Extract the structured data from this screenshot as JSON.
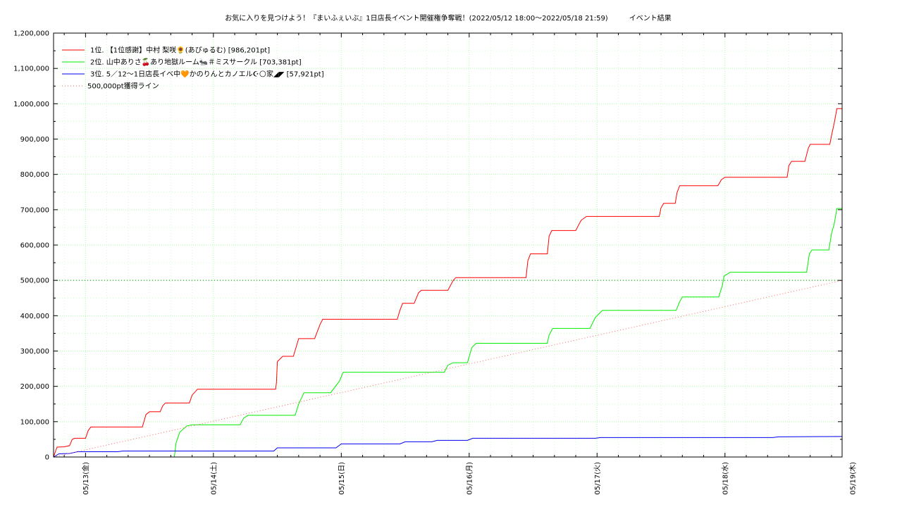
{
  "chart_data": {
    "type": "line",
    "title": "お気に入りを見つけよう！『まいふぇいぶ』1日店長イベント開催権争奪戦！(2022/05/12 18:00～2022/05/18 21:59)　　　イベント結果",
    "xlabel": "",
    "ylabel": "",
    "grid": true,
    "legend_position": "top-left",
    "xlim": [
      "2022-05-12 18:00",
      "2022-05-18 21:59"
    ],
    "ylim": [
      0,
      1200000
    ],
    "yticks": [
      0,
      100000,
      200000,
      300000,
      400000,
      500000,
      600000,
      700000,
      800000,
      900000,
      1000000,
      1100000,
      1200000
    ],
    "ytick_labels": [
      "0",
      "100,000",
      "200,000",
      "300,000",
      "400,000",
      "500,000",
      "600,000",
      "700,000",
      "800,000",
      "900,000",
      "1,000,000",
      "1,100,000",
      "1,200,000"
    ],
    "xticks": [
      "2022-05-13 00:00",
      "2022-05-14 00:00",
      "2022-05-15 00:00",
      "2022-05-16 00:00",
      "2022-05-17 00:00",
      "2022-05-18 00:00",
      "2022-05-19 00:00"
    ],
    "xtick_labels": [
      "05/13(金)",
      "05/14(土)",
      "05/15(日)",
      "05/16(月)",
      "05/17(火)",
      "05/18(水)",
      "05/19(木)"
    ],
    "series": [
      {
        "name": "1位. 【1位感謝】中村 梨咲🌻(あぴゅるむ) [986,201pt]",
        "color": "#ff0000",
        "style": "solid",
        "points": [
          [
            "2022-05-12 18:00",
            0
          ],
          [
            "2022-05-12 18:20",
            15000
          ],
          [
            "2022-05-12 18:40",
            28000
          ],
          [
            "2022-05-12 20:00",
            29000
          ],
          [
            "2022-05-12 21:00",
            32000
          ],
          [
            "2022-05-12 21:30",
            50000
          ],
          [
            "2022-05-12 22:00",
            53000
          ],
          [
            "2022-05-13 00:00",
            53000
          ],
          [
            "2022-05-13 00:30",
            75000
          ],
          [
            "2022-05-13 01:00",
            85000
          ],
          [
            "2022-05-13 10:40",
            85000
          ],
          [
            "2022-05-13 11:20",
            120000
          ],
          [
            "2022-05-13 12:00",
            128000
          ],
          [
            "2022-05-13 14:00",
            128000
          ],
          [
            "2022-05-13 14:30",
            145000
          ],
          [
            "2022-05-13 15:00",
            153000
          ],
          [
            "2022-05-13 19:30",
            153000
          ],
          [
            "2022-05-13 20:00",
            175000
          ],
          [
            "2022-05-13 21:00",
            192000
          ],
          [
            "2022-05-14 11:40",
            192000
          ],
          [
            "2022-05-14 11:50",
            210000
          ],
          [
            "2022-05-14 12:00",
            270000
          ],
          [
            "2022-05-14 13:00",
            285000
          ],
          [
            "2022-05-14 15:00",
            285000
          ],
          [
            "2022-05-14 15:30",
            310000
          ],
          [
            "2022-05-14 16:00",
            335000
          ],
          [
            "2022-05-14 19:00",
            335000
          ],
          [
            "2022-05-14 20:00",
            375000
          ],
          [
            "2022-05-14 20:30",
            390000
          ],
          [
            "2022-05-15 10:30",
            390000
          ],
          [
            "2022-05-15 11:00",
            415000
          ],
          [
            "2022-05-15 11:30",
            435000
          ],
          [
            "2022-05-15 13:40",
            435000
          ],
          [
            "2022-05-15 14:30",
            465000
          ],
          [
            "2022-05-15 15:00",
            472000
          ],
          [
            "2022-05-15 20:00",
            472000
          ],
          [
            "2022-05-15 21:00",
            500000
          ],
          [
            "2022-05-15 21:30",
            508000
          ],
          [
            "2022-05-16 10:40",
            508000
          ],
          [
            "2022-05-16 11:00",
            555000
          ],
          [
            "2022-05-16 11:30",
            575000
          ],
          [
            "2022-05-16 14:40",
            575000
          ],
          [
            "2022-05-16 15:00",
            625000
          ],
          [
            "2022-05-16 15:30",
            641000
          ],
          [
            "2022-05-16 20:00",
            641000
          ],
          [
            "2022-05-16 21:00",
            670000
          ],
          [
            "2022-05-16 22:00",
            681000
          ],
          [
            "2022-05-17 11:40",
            681000
          ],
          [
            "2022-05-17 12:00",
            705000
          ],
          [
            "2022-05-17 12:30",
            718000
          ],
          [
            "2022-05-17 14:40",
            718000
          ],
          [
            "2022-05-17 15:00",
            748000
          ],
          [
            "2022-05-17 15:30",
            768000
          ],
          [
            "2022-05-17 22:40",
            768000
          ],
          [
            "2022-05-17 23:20",
            785000
          ],
          [
            "2022-05-18 00:00",
            792000
          ],
          [
            "2022-05-18 11:40",
            792000
          ],
          [
            "2022-05-18 12:00",
            825000
          ],
          [
            "2022-05-18 12:30",
            837000
          ],
          [
            "2022-05-18 15:00",
            837000
          ],
          [
            "2022-05-18 15:40",
            875000
          ],
          [
            "2022-05-18 16:00",
            885000
          ],
          [
            "2022-05-18 19:40",
            885000
          ],
          [
            "2022-05-18 20:00",
            910000
          ],
          [
            "2022-05-18 20:30",
            945000
          ],
          [
            "2022-05-18 21:00",
            986201
          ],
          [
            "2022-05-18 21:59",
            986201
          ]
        ]
      },
      {
        "name": "2位. 山中ありさ🍒あり地獄ルーム🐜＃ミスサークル [703,381pt]",
        "color": "#00ee00",
        "style": "solid",
        "points": [
          [
            "2022-05-13 16:40",
            0
          ],
          [
            "2022-05-13 17:00",
            40000
          ],
          [
            "2022-05-13 17:40",
            70000
          ],
          [
            "2022-05-13 19:00",
            88000
          ],
          [
            "2022-05-13 20:00",
            91000
          ],
          [
            "2022-05-14 05:00",
            91000
          ],
          [
            "2022-05-14 05:40",
            110000
          ],
          [
            "2022-05-14 06:30",
            118000
          ],
          [
            "2022-05-14 15:20",
            118000
          ],
          [
            "2022-05-14 16:00",
            150000
          ],
          [
            "2022-05-14 17:00",
            182000
          ],
          [
            "2022-05-14 22:00",
            182000
          ],
          [
            "2022-05-14 23:40",
            215000
          ],
          [
            "2022-05-15 00:20",
            240000
          ],
          [
            "2022-05-15 19:20",
            240000
          ],
          [
            "2022-05-15 20:00",
            260000
          ],
          [
            "2022-05-15 21:00",
            267000
          ],
          [
            "2022-05-15 23:40",
            267000
          ],
          [
            "2022-05-16 00:30",
            310000
          ],
          [
            "2022-05-16 01:20",
            322000
          ],
          [
            "2022-05-16 14:40",
            322000
          ],
          [
            "2022-05-16 15:00",
            345000
          ],
          [
            "2022-05-16 15:40",
            364000
          ],
          [
            "2022-05-16 22:40",
            364000
          ],
          [
            "2022-05-16 23:40",
            395000
          ],
          [
            "2022-05-17 00:20",
            405000
          ],
          [
            "2022-05-17 01:00",
            415000
          ],
          [
            "2022-05-17 14:50",
            415000
          ],
          [
            "2022-05-17 15:30",
            440000
          ],
          [
            "2022-05-17 16:00",
            453000
          ],
          [
            "2022-05-17 22:50",
            453000
          ],
          [
            "2022-05-17 23:30",
            485000
          ],
          [
            "2022-05-17 23:50",
            512000
          ],
          [
            "2022-05-18 01:00",
            523000
          ],
          [
            "2022-05-18 15:20",
            523000
          ],
          [
            "2022-05-18 15:50",
            575000
          ],
          [
            "2022-05-18 16:20",
            586000
          ],
          [
            "2022-05-18 19:30",
            586000
          ],
          [
            "2022-05-18 20:00",
            633000
          ],
          [
            "2022-05-18 20:30",
            660000
          ],
          [
            "2022-05-18 21:00",
            703381
          ],
          [
            "2022-05-18 21:59",
            703381
          ]
        ]
      },
      {
        "name": "3位. 5／12〜1日店長イベ中🧡かのりんとカノエル☪︎🌕家◢◤ [57,921pt]",
        "color": "#0000ee",
        "style": "solid",
        "points": [
          [
            "2022-05-12 18:00",
            0
          ],
          [
            "2022-05-12 19:00",
            9000
          ],
          [
            "2022-05-12 21:00",
            10000
          ],
          [
            "2022-05-12 22:30",
            15000
          ],
          [
            "2022-05-13 06:00",
            15000
          ],
          [
            "2022-05-13 07:00",
            17000
          ],
          [
            "2022-05-14 11:20",
            17000
          ],
          [
            "2022-05-14 12:00",
            26000
          ],
          [
            "2022-05-14 23:00",
            26000
          ],
          [
            "2022-05-15 00:00",
            37000
          ],
          [
            "2022-05-15 11:00",
            37000
          ],
          [
            "2022-05-15 12:00",
            43000
          ],
          [
            "2022-05-15 17:00",
            43000
          ],
          [
            "2022-05-15 18:00",
            47000
          ],
          [
            "2022-05-15 23:40",
            47000
          ],
          [
            "2022-05-16 00:40",
            53000
          ],
          [
            "2022-05-16 23:40",
            53000
          ],
          [
            "2022-05-17 00:40",
            55000
          ],
          [
            "2022-05-18 09:00",
            55000
          ],
          [
            "2022-05-18 10:00",
            57000
          ],
          [
            "2022-05-18 21:59",
            57921
          ]
        ]
      },
      {
        "name": "500,000pt獲得ライン",
        "color": "#ff6666",
        "style": "dotted",
        "points": [
          [
            "2022-05-12 18:00",
            0
          ],
          [
            "2022-05-18 21:59",
            500000
          ]
        ]
      }
    ],
    "reference_lines": [
      {
        "y": 500000,
        "color": "#008000",
        "style": "dotted"
      }
    ]
  }
}
